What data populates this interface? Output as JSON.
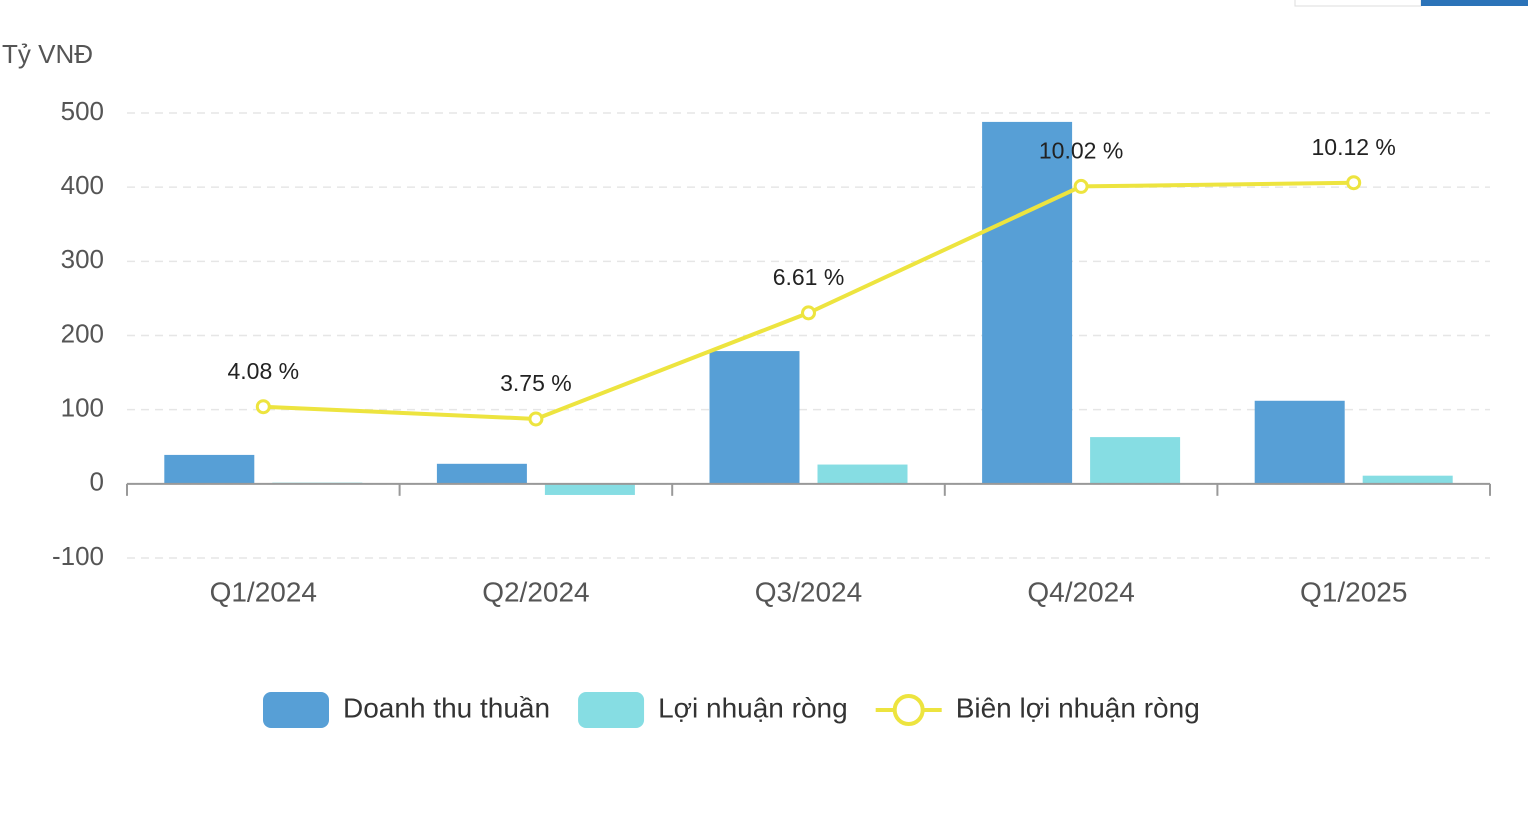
{
  "chart_data": {
    "type": "bar_line",
    "y_axis_label": "Tỷ VNĐ",
    "categories": [
      "Q1/2024",
      "Q2/2024",
      "Q3/2024",
      "Q4/2024",
      "Q1/2025"
    ],
    "series": [
      {
        "name": "Doanh thu thuần",
        "type": "bar",
        "color": "#579fd6",
        "values": [
          39,
          27,
          179,
          488,
          112
        ]
      },
      {
        "name": "Lợi nhuận ròng",
        "type": "bar",
        "color": "#86dde3",
        "values": [
          1.6,
          -15,
          26,
          63,
          11
        ]
      },
      {
        "name": "Biên lợi nhuận ròng",
        "type": "line",
        "axis": "y2",
        "color": "#ede43f",
        "values": [
          4.08,
          3.75,
          6.61,
          10.02,
          10.12
        ],
        "value_labels": [
          "4.08 %",
          "3.75 %",
          "6.61 %",
          "10.02 %",
          "10.12 %"
        ]
      }
    ],
    "ylim": [
      -100,
      500
    ],
    "yticks": [
      -100,
      0,
      100,
      200,
      300,
      400,
      500
    ],
    "y2lim": [
      0,
      12
    ],
    "grid": true,
    "legend": "bottom"
  }
}
